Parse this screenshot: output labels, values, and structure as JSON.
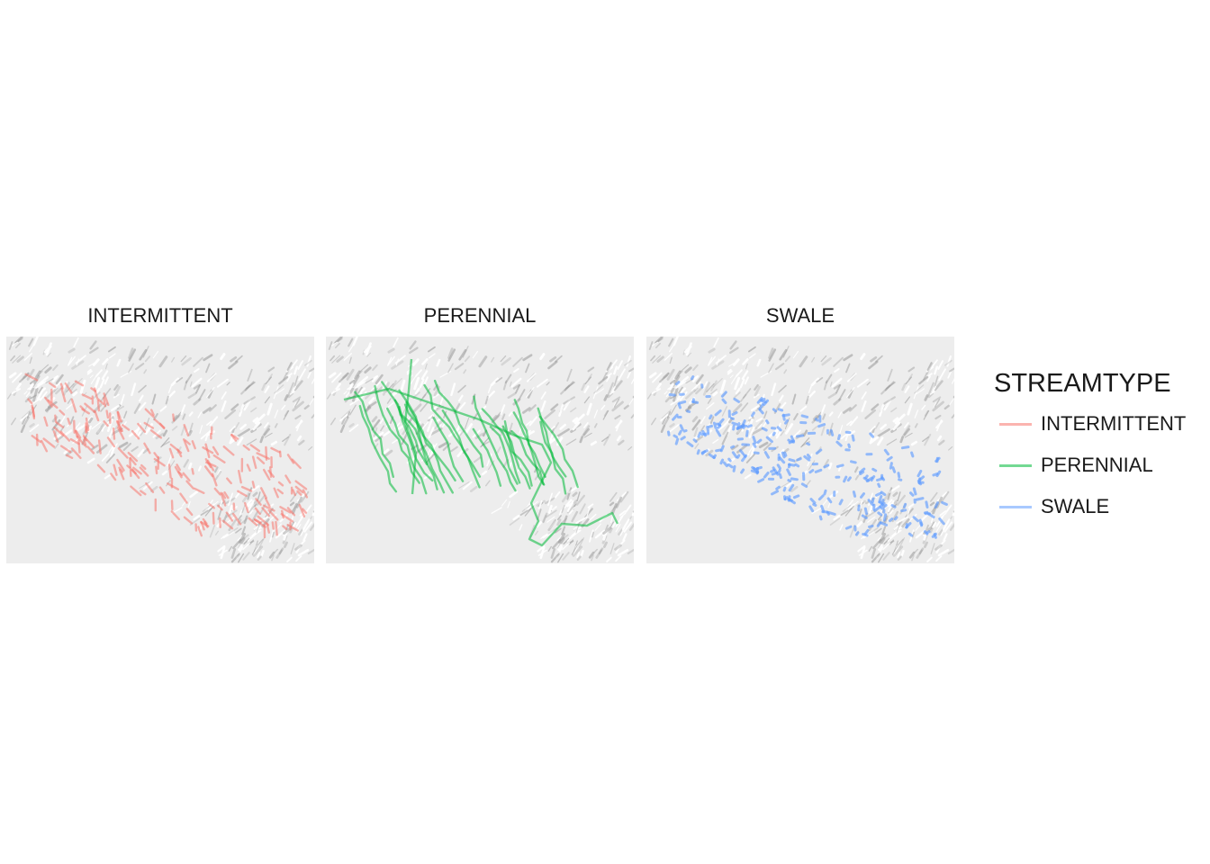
{
  "legend": {
    "title": "STREAMTYPE",
    "items": [
      {
        "label": "INTERMITTENT",
        "color": "#F8766D"
      },
      {
        "label": "PERENNIAL",
        "color": "#00BA38"
      },
      {
        "label": "SWALE",
        "color": "#619CFF"
      }
    ]
  },
  "panels": [
    {
      "title": "INTERMITTENT",
      "color": "#F8766D",
      "line_opacity": 0.55
    },
    {
      "title": "PERENNIAL",
      "color": "#00BA38",
      "line_opacity": 0.55
    },
    {
      "title": "SWALE",
      "color": "#619CFF",
      "line_opacity": 0.65
    }
  ],
  "basemap": {
    "style": "grayscale hillshade",
    "background_color": "#ededed"
  }
}
